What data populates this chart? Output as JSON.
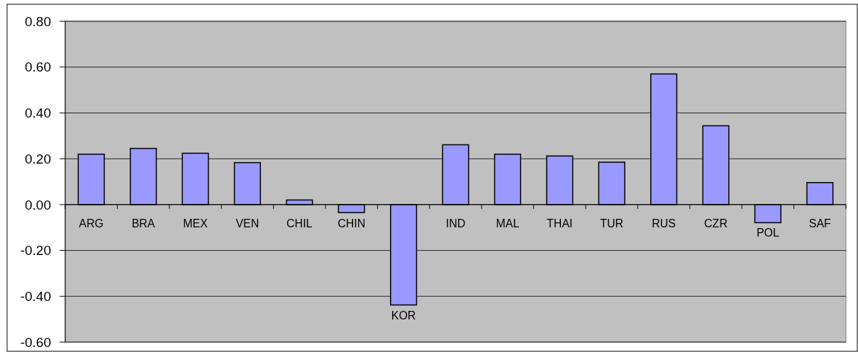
{
  "chart_data": {
    "type": "bar",
    "categories": [
      "ARG",
      "BRA",
      "MEX",
      "VEN",
      "CHIL",
      "CHIN",
      "KOR",
      "IND",
      "MAL",
      "THAI",
      "TUR",
      "RUS",
      "CZR",
      "POL",
      "SAF"
    ],
    "values": [
      0.22,
      0.245,
      0.224,
      0.183,
      0.02,
      -0.035,
      -0.438,
      0.261,
      0.22,
      0.212,
      0.185,
      0.57,
      0.344,
      -0.079,
      0.096
    ],
    "color": "#9999ff",
    "ylim": [
      -0.6,
      0.8
    ],
    "yticks": [
      {
        "value": -0.6,
        "label": "-0.60"
      },
      {
        "value": -0.4,
        "label": "-0.40"
      },
      {
        "value": -0.2,
        "label": "-0.20"
      },
      {
        "value": 0,
        "label": "0.00"
      },
      {
        "value": 0.2,
        "label": "0.20"
      },
      {
        "value": 0.4,
        "label": "0.40"
      },
      {
        "value": 0.6,
        "label": "0.60"
      },
      {
        "value": 0.8,
        "label": "0.80"
      }
    ],
    "grid": "y"
  }
}
